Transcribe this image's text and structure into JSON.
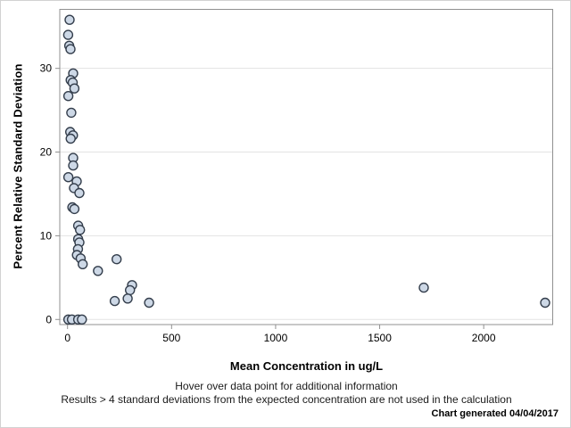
{
  "chart_data": {
    "type": "scatter",
    "xlabel": "Mean Concentration in ug/L",
    "ylabel": "Percent Relative Standard Deviation",
    "x_ticks": [
      0,
      500,
      1000,
      1500,
      2000
    ],
    "y_ticks": [
      0,
      10,
      20,
      30
    ],
    "xlim": [
      -37.3,
      2331.6
    ],
    "ylim": [
      -0.61,
      37.05
    ],
    "grid": "horizontal",
    "legend": "none",
    "points": [
      [
        10,
        35.8
      ],
      [
        3,
        34.0
      ],
      [
        8,
        32.7
      ],
      [
        14,
        32.3
      ],
      [
        27,
        29.4
      ],
      [
        15,
        28.6
      ],
      [
        25,
        28.3
      ],
      [
        33,
        27.6
      ],
      [
        4,
        26.7
      ],
      [
        18,
        24.7
      ],
      [
        13,
        22.4
      ],
      [
        26,
        22.0
      ],
      [
        15,
        21.6
      ],
      [
        27,
        19.3
      ],
      [
        27,
        18.4
      ],
      [
        4,
        17.0
      ],
      [
        44,
        16.5
      ],
      [
        31,
        15.7
      ],
      [
        57,
        15.1
      ],
      [
        23,
        13.4
      ],
      [
        33,
        13.2
      ],
      [
        51,
        11.2
      ],
      [
        60,
        10.7
      ],
      [
        51,
        9.6
      ],
      [
        57,
        9.2
      ],
      [
        50,
        8.4
      ],
      [
        45,
        7.7
      ],
      [
        63,
        7.3
      ],
      [
        73,
        6.6
      ],
      [
        236,
        7.2
      ],
      [
        146,
        5.8
      ],
      [
        310,
        4.1
      ],
      [
        300,
        3.5
      ],
      [
        289,
        2.5
      ],
      [
        227,
        2.2
      ],
      [
        392,
        2.0
      ],
      [
        1712,
        3.8
      ],
      [
        2295,
        2.0
      ],
      [
        4,
        0
      ],
      [
        21,
        0
      ],
      [
        51,
        0
      ],
      [
        69,
        0
      ]
    ],
    "marker": {
      "fill": "#cdd8e6",
      "stroke": "#343e4c",
      "radius": 5
    },
    "colors": {
      "grid": "#e3e3e3",
      "axis": "#909090",
      "text": "#000000",
      "frame_border": "#d2d2d2"
    },
    "annotations": [
      "Hover over data point for additional information",
      "Results > 4 standard deviations from the expected concentration are not used in the calculation",
      "Chart generated 04/04/2017"
    ]
  }
}
